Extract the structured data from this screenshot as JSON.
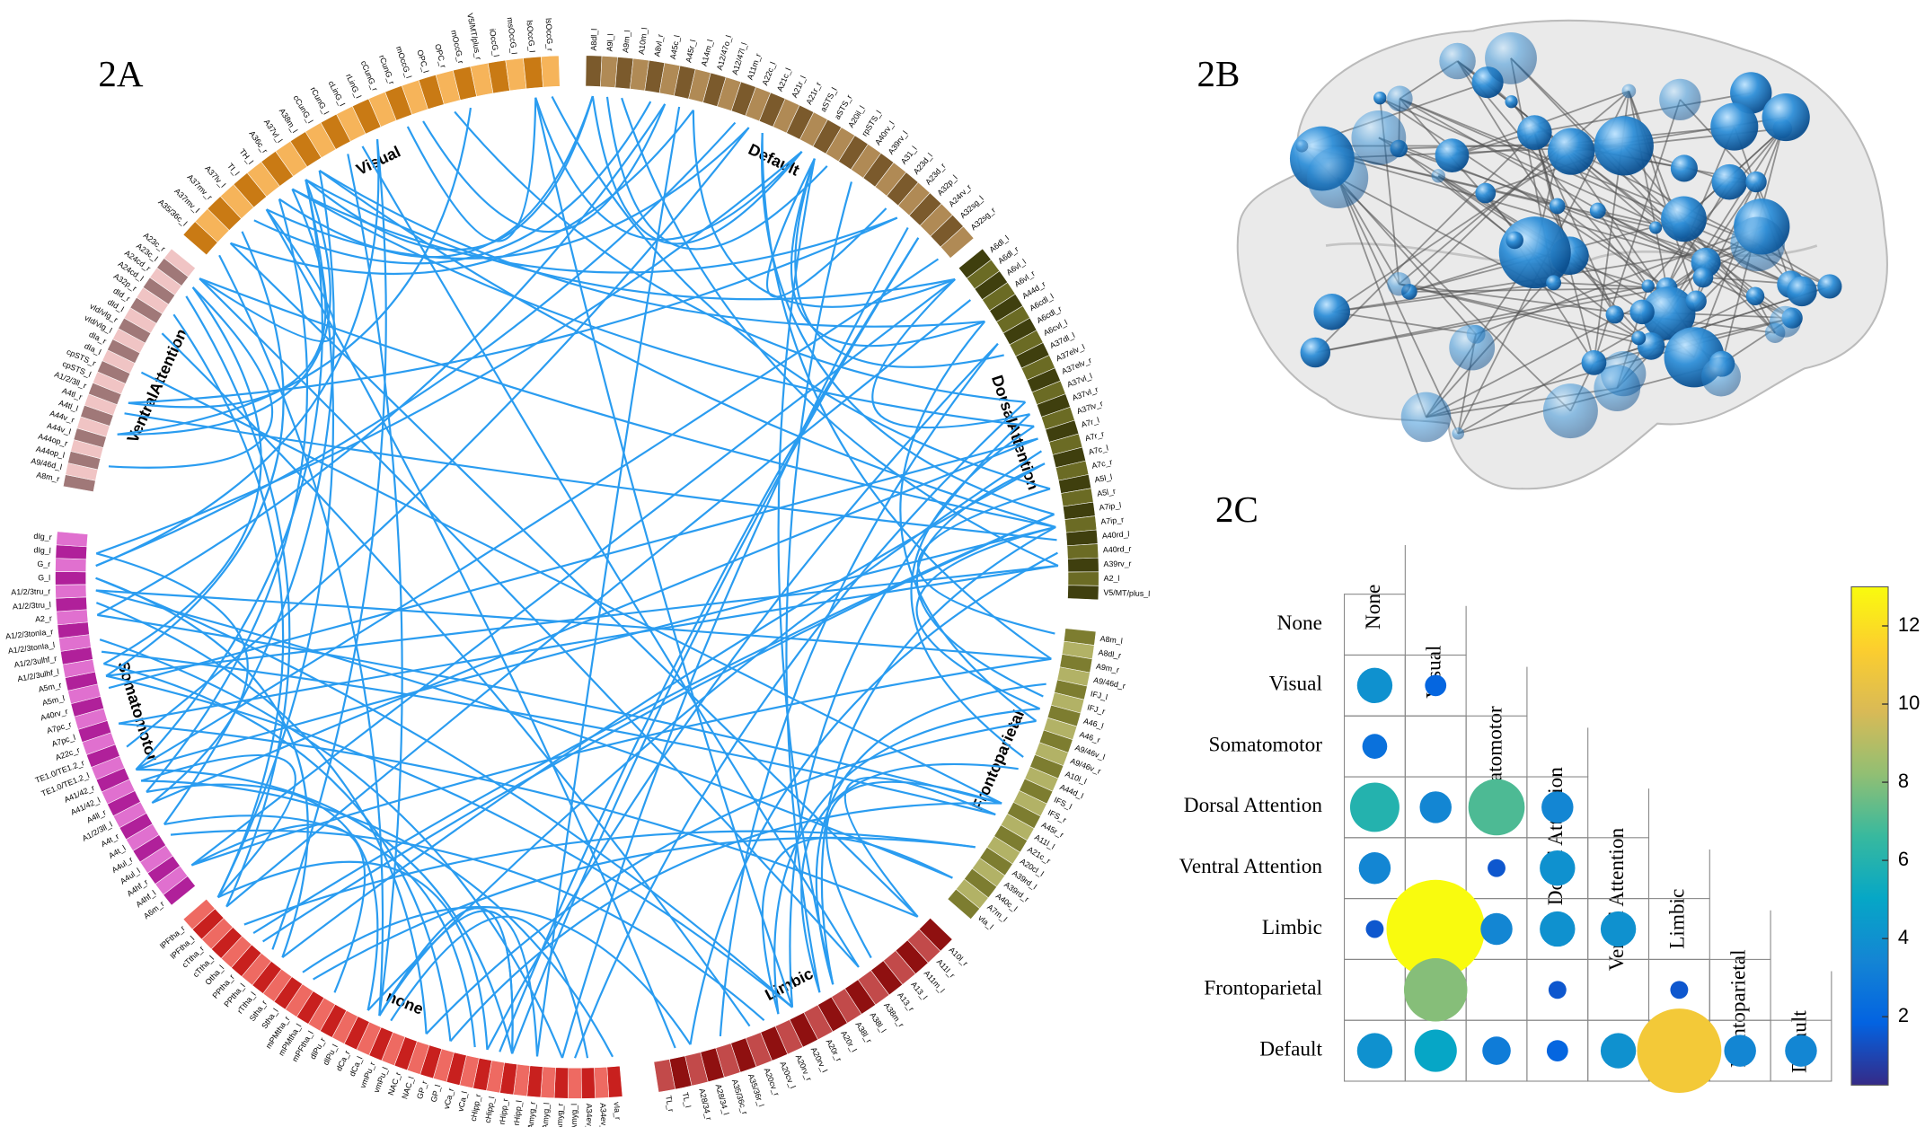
{
  "panels": {
    "a": {
      "label": "2A",
      "networks": [
        {
          "name": "Default",
          "color": "#7b5a2c",
          "alt_color": "#b08a55",
          "regions": [
            "A8dl_l",
            "A9l_l",
            "A9m_l",
            "A10m_l",
            "A8vl_r",
            "A45c_l",
            "A45r_l",
            "A14m_l",
            "A12/47o_l",
            "A12/47l_l",
            "A11m_r",
            "A22c_l",
            "A21c_l",
            "A21r_l",
            "A21r_r",
            "aSTS_l",
            "aSTS_r",
            "A20il_l",
            "rpSTS_l",
            "A40rv_l",
            "A39rv_l",
            "A31_l",
            "A23d_l",
            "A23d_r",
            "A32p_l",
            "A24rv_r",
            "A32sg_l",
            "A32sg_r"
          ]
        },
        {
          "name": "DorsalAttention",
          "color": "#3f3f0e",
          "alt_color": "#6b6b24",
          "regions": [
            "A6dl_l",
            "A6dl_r",
            "A6vl_l",
            "A6vl_r",
            "A44d_r",
            "A6cdl_l",
            "A6cdl_r",
            "A6cvl_l",
            "A37dl_l",
            "A37elv_l",
            "A37elv_r",
            "A37vl_l",
            "A37vl_r",
            "A37lv_r",
            "A7r_l",
            "A7r_r",
            "A7c_l",
            "A7c_r",
            "A5l_l",
            "A5l_r",
            "A7ip_l",
            "A7ip_r",
            "A40rd_l",
            "A40rd_r",
            "A39rv_r",
            "A2_l",
            "V5/MT/plus_l"
          ]
        },
        {
          "name": "Frontoparietal",
          "color": "#7d7d30",
          "alt_color": "#b2b266",
          "regions": [
            "A8m_l",
            "A8dl_r",
            "A9m_r",
            "A9/46d_r",
            "IFJ_l",
            "IFJ_r",
            "A46_l",
            "A46_r",
            "A9/46v_l",
            "A9/46v_r",
            "A10l_l",
            "A44d_l",
            "IFS_l",
            "IFS_r",
            "A45r_r",
            "A11l_l",
            "A21c_r",
            "A20cl_l",
            "A39rd_l",
            "A39rd_r",
            "A40c_l",
            "A7m_l",
            "vIa_l"
          ]
        },
        {
          "name": "Limbic",
          "color": "#8f1010",
          "alt_color": "#c24a4a",
          "regions": [
            "A10l_r",
            "A11l_r",
            "A11m_l",
            "A13_l",
            "A13_r",
            "A38m_r",
            "A38l_l",
            "A38l_r",
            "A20r_l",
            "A20r_r",
            "A20rv_l",
            "A20rv_r",
            "A20cv_l",
            "A20cv_r",
            "A35/36r_l",
            "A35/36c_r",
            "A28/34_l",
            "A28/34_r",
            "TL_l",
            "TL_r"
          ]
        },
        {
          "name": "none",
          "color": "#c8201e",
          "alt_color": "#ee6a62",
          "regions": [
            "vIa_r",
            "A34ev_l",
            "A34ev_r",
            "mAmyg_l",
            "mAmyg_r",
            "lAmyg_l",
            "lAmyg_r",
            "rHipp_l",
            "rHipp_r",
            "cHipp_l",
            "cHipp_r",
            "vCa_l",
            "vCa_r",
            "GP_l",
            "GP_r",
            "NAC_l",
            "NAC_r",
            "vmPu_l",
            "vmPu_r",
            "dCa_l",
            "dCa_r",
            "dlPu_l",
            "dlPu_r",
            "mPFtha_l",
            "mPMtha_l",
            "mPMtha_r",
            "Stha_l",
            "Stha_r",
            "rTtha_l",
            "PPtha_l",
            "PPtha_r",
            "Otha_l",
            "cTtha_l",
            "cTtha_r",
            "lPFtha_l",
            "lPFtha_r"
          ]
        },
        {
          "name": "Somatomotor",
          "color": "#b0209a",
          "alt_color": "#e070cf",
          "regions": [
            "A6m_r",
            "A4hf_l",
            "A4hf_r",
            "A4ul_l",
            "A4ul_r",
            "A4t_l",
            "A4t_r",
            "A1/2/3ll_l",
            "A4ll_r",
            "A41/42_l",
            "A41/42_r",
            "TE1.0/TE1.2_l",
            "TE1.0/TE1.2_r",
            "A22c_r",
            "A7pc_l",
            "A7pc_r",
            "A40rv_r",
            "A5m_l",
            "A5m_r",
            "A1/2/3ulhf_l",
            "A1/2/3ulhf_r",
            "A1/2/3tonIa_l",
            "A1/2/3tonIa_r",
            "A2_r",
            "A1/2/3tru_l",
            "A1/2/3tru_r",
            "G_l",
            "G_r",
            "dIg_l",
            "dIg_r"
          ]
        },
        {
          "name": "VentralAttention",
          "color": "#a07878",
          "alt_color": "#f0c4c4",
          "regions": [
            "A8m_r",
            "A9/46d_l",
            "A44op_l",
            "A44op_r",
            "A44v_l",
            "A44v_r",
            "A4tl_l",
            "A4tl_r",
            "A1/2/3ll_r",
            "cpSTS_l",
            "cpSTS_r",
            "dIa_l",
            "dIa_r",
            "vId/vIg_l",
            "vId/vIg_r",
            "dId_l",
            "dId_r",
            "A32p_r",
            "A24cd_l",
            "A24cd_r",
            "A23c_l",
            "A23c_r"
          ]
        },
        {
          "name": "Visual",
          "color": "#c97a14",
          "alt_color": "#f6b45a",
          "regions": [
            "A35/36c_l",
            "A37mv_l",
            "A37mv_r",
            "A37lv_l",
            "TI_l",
            "TH_l",
            "A36c_r",
            "A37vl_l",
            "A38m_l",
            "cCunG_l",
            "rCunG_l",
            "cLinG_l",
            "rLinG_l",
            "cCunG_r",
            "rCunG_r",
            "mOccG_l",
            "OPC_l",
            "OPC_r",
            "mOccG_r",
            "V5/MT/plus_r",
            "iOccG_l",
            "msOccG_l",
            "lsOccG_l",
            "lsOccG_r"
          ]
        }
      ],
      "link_color": "#2a9cf0"
    },
    "b": {
      "label": "2B",
      "node_color": "#2f8fd8"
    }
  },
  "chart_data": {
    "type": "bubble_matrix",
    "title": "2C",
    "categories": [
      "None",
      "Visual",
      "Somatomotor",
      "Dorsal Attention",
      "Ventral Attention",
      "Limbic",
      "Frontoparietal",
      "Default"
    ],
    "values": [
      [
        null
      ],
      [
        4,
        2
      ],
      [
        2.5,
        null,
        null
      ],
      [
        6,
        3.5,
        7,
        3.5
      ],
      [
        3.5,
        null,
        1.5,
        4,
        null
      ],
      [
        1.5,
        13,
        3.5,
        4,
        4,
        null
      ],
      [
        null,
        8,
        null,
        1.5,
        null,
        1.5,
        null
      ],
      [
        4,
        5,
        3,
        2,
        4,
        11,
        3.5,
        3.5
      ]
    ],
    "clim": [
      0.25,
      13
    ],
    "cticks": [
      2,
      4,
      6,
      8,
      10,
      12
    ],
    "colormap": "parula"
  }
}
